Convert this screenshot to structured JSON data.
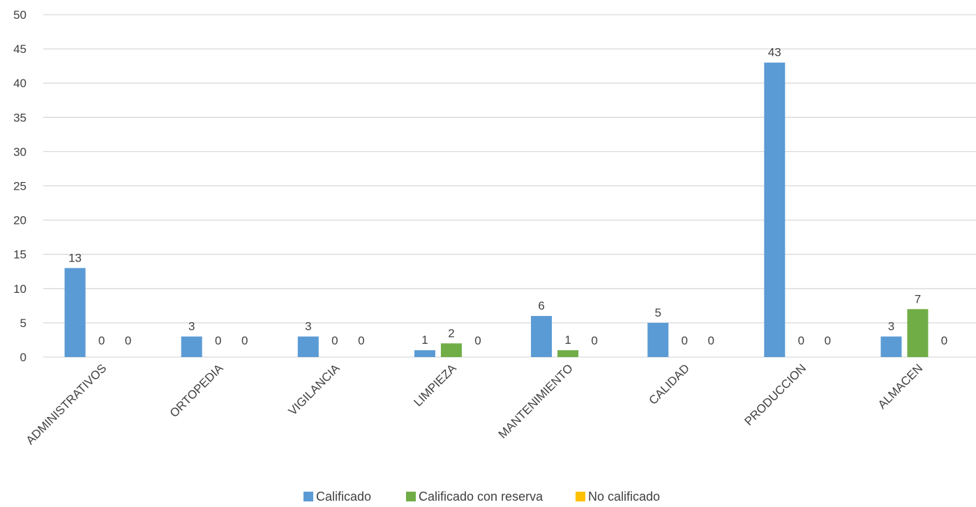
{
  "chart_data": {
    "type": "bar",
    "title": "",
    "xlabel": "",
    "ylabel": "",
    "ylim": [
      0,
      50
    ],
    "yticks": [
      0,
      5,
      10,
      15,
      20,
      25,
      30,
      35,
      40,
      45,
      50
    ],
    "grid": true,
    "legend_position": "bottom",
    "categories": [
      "ADMINISTRATIVOS",
      "ORTOPEDIA",
      "VIGILANCIA",
      "LIMPIEZA",
      "MANTENIMIENTO",
      "CALIDAD",
      "PRODUCCION",
      "ALMACEN"
    ],
    "series": [
      {
        "name": "Calificado",
        "color": "#5b9bd5",
        "values": [
          13,
          3,
          3,
          1,
          6,
          5,
          43,
          3
        ]
      },
      {
        "name": "Calificado con reserva",
        "color": "#70ad47",
        "values": [
          0,
          0,
          0,
          2,
          1,
          0,
          0,
          7
        ]
      },
      {
        "name": "No calificado",
        "color": "#ffc000",
        "values": [
          0,
          0,
          0,
          0,
          0,
          0,
          0,
          0
        ]
      }
    ]
  }
}
